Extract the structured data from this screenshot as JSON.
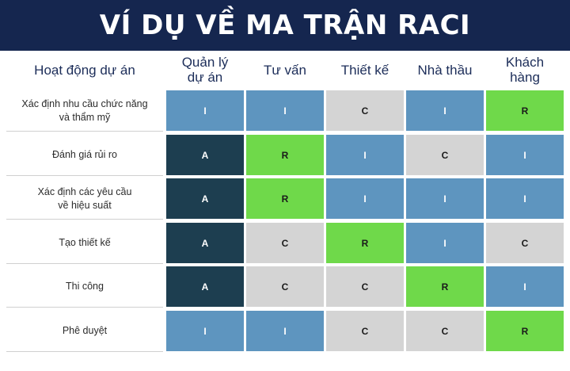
{
  "title": "VÍ DỤ VỀ MA TRẬN RACI",
  "colors": {
    "banner": "#15264f",
    "A": "#1d3e50",
    "R": "#6fd94a",
    "C": "#d4d4d4",
    "I": "#5e95bf"
  },
  "activity_header": "Hoạt động dự án",
  "roles": [
    "Quản lý\ndự án",
    "Tư vấn",
    "Thiết kế",
    "Nhà thầu",
    "Khách\nhàng"
  ],
  "rows": [
    {
      "activity": "Xác định nhu cầu chức năng\nvà thẩm mỹ",
      "cells": [
        "I",
        "I",
        "C",
        "I",
        "R"
      ]
    },
    {
      "activity": "Đánh giá rủi ro",
      "cells": [
        "A",
        "R",
        "I",
        "C",
        "I"
      ]
    },
    {
      "activity": "Xác định các yêu cầu\nvề hiệu suất",
      "cells": [
        "A",
        "R",
        "I",
        "I",
        "I"
      ]
    },
    {
      "activity": "Tạo thiết kế",
      "cells": [
        "A",
        "C",
        "R",
        "I",
        "C"
      ]
    },
    {
      "activity": "Thi công",
      "cells": [
        "A",
        "C",
        "C",
        "R",
        "I"
      ]
    },
    {
      "activity": "Phê duyệt",
      "cells": [
        "I",
        "I",
        "C",
        "C",
        "R"
      ]
    }
  ]
}
